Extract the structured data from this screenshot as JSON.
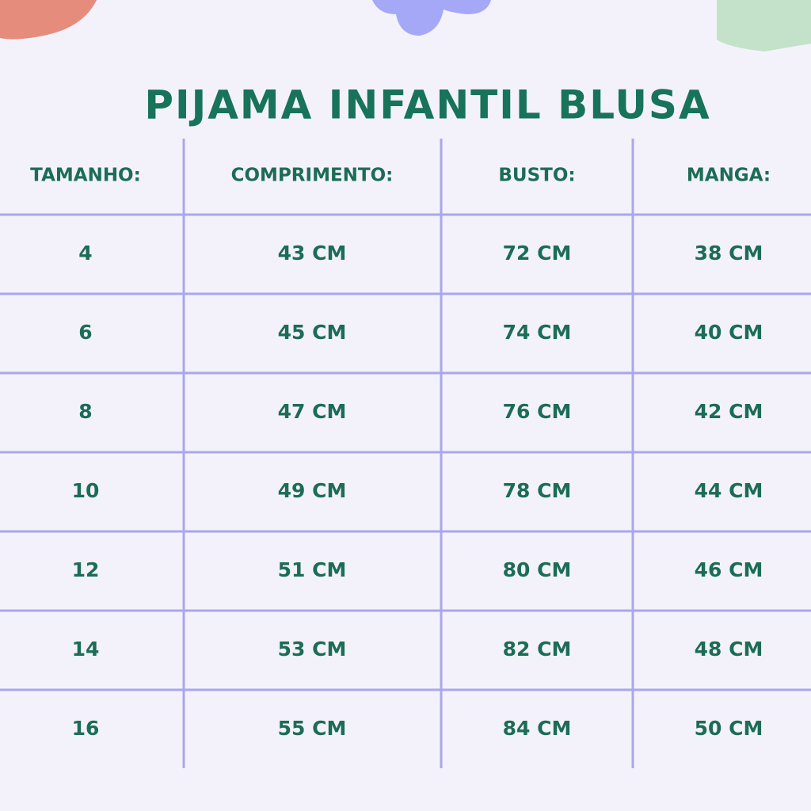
{
  "title": "PIJAMA INFANTIL BLUSA",
  "table": {
    "header": [
      "TAMANHO:",
      "COMPRIMENTO:",
      "BUSTO:",
      "MANGA:"
    ],
    "rows": [
      [
        "4",
        "43 CM",
        "72 CM",
        "38 CM"
      ],
      [
        "6",
        "45 CM",
        "74 CM",
        "40 CM"
      ],
      [
        "8",
        "47 CM",
        "76 CM",
        "42 CM"
      ],
      [
        "10",
        "49 CM",
        "78 CM",
        "44 CM"
      ],
      [
        "12",
        "51 CM",
        "80 CM",
        "46 CM"
      ],
      [
        "14",
        "53 CM",
        "82 CM",
        "48 CM"
      ],
      [
        "16",
        "55 CM",
        "84 CM",
        "50 CM"
      ]
    ]
  }
}
